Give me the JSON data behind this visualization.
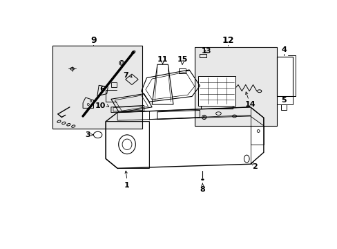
{
  "bg": "#ffffff",
  "lc": "#000000",
  "box_fill": "#e8e8e8",
  "fig_w": 4.89,
  "fig_h": 3.6,
  "dpi": 100
}
